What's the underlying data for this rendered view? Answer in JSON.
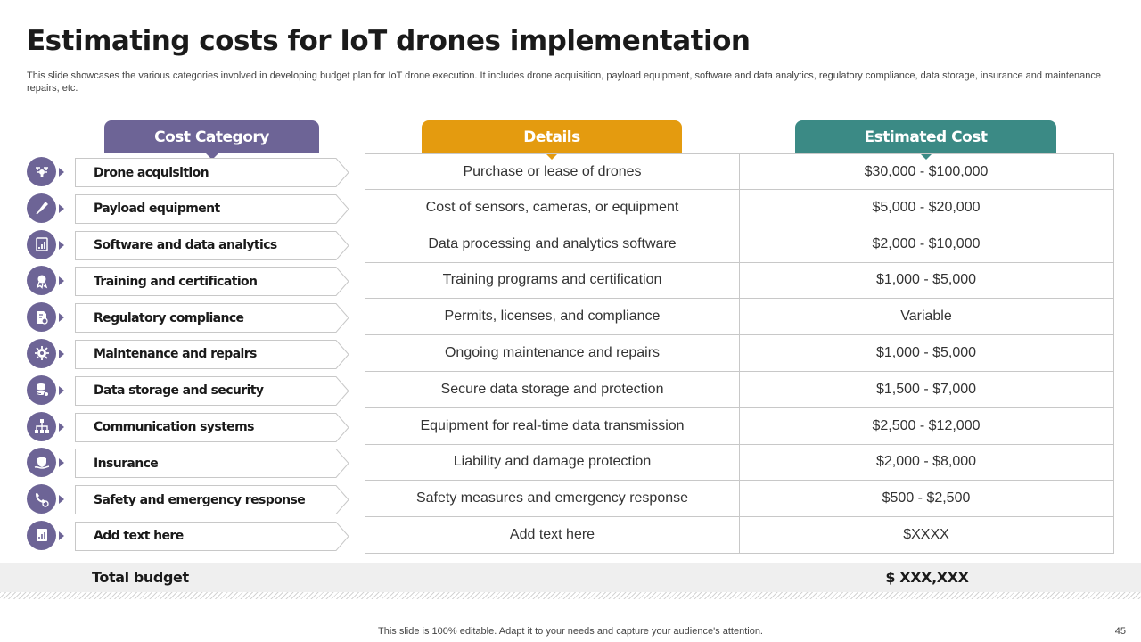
{
  "slide": {
    "title": "Estimating costs for IoT drones implementation",
    "subtitle": "This slide showcases the various categories involved in developing budget plan for IoT drone execution. It includes drone acquisition, payload equipment, software and data analytics, regulatory compliance, data storage, insurance and maintenance repairs, etc.",
    "footer": "This slide is 100% editable. Adapt it to your needs and capture your audience's attention.",
    "page_number": "45"
  },
  "colors": {
    "category_header": "#6d6496",
    "details_header": "#e49b0f",
    "cost_header": "#3b8a85"
  },
  "headers": {
    "category": "Cost Category",
    "details": "Details",
    "cost": "Estimated Cost"
  },
  "rows": [
    {
      "icon": "drone-icon",
      "category": "Drone acquisition",
      "details": "Purchase or lease of drones",
      "cost": "$30,000 - $100,000"
    },
    {
      "icon": "payload-icon",
      "category": "Payload equipment",
      "details": "Cost of sensors, cameras, or equipment",
      "cost": "$5,000 - $20,000"
    },
    {
      "icon": "analytics-icon",
      "category": "Software and data analytics",
      "details": "Data processing and analytics software",
      "cost": "$2,000 - $10,000"
    },
    {
      "icon": "certificate-icon",
      "category": "Training and certification",
      "details": "Training programs and certification",
      "cost": "$1,000 - $5,000"
    },
    {
      "icon": "compliance-icon",
      "category": "Regulatory compliance",
      "details": "Permits, licenses, and compliance",
      "cost": "Variable"
    },
    {
      "icon": "maintenance-icon",
      "category": "Maintenance and repairs",
      "details": "Ongoing maintenance and repairs",
      "cost": "$1,000 - $5,000"
    },
    {
      "icon": "database-icon",
      "category": "Data storage and security",
      "details": "Secure data storage and protection",
      "cost": "$1,500 - $7,000"
    },
    {
      "icon": "network-icon",
      "category": "Communication systems",
      "details": "Equipment for real-time data transmission",
      "cost": "$2,500 - $12,000"
    },
    {
      "icon": "insurance-icon",
      "category": "Insurance",
      "details": "Liability and damage protection",
      "cost": "$2,000 - $8,000"
    },
    {
      "icon": "emergency-icon",
      "category": "Safety and emergency response",
      "details": "Safety measures and emergency response",
      "cost": "$500 - $2,500"
    },
    {
      "icon": "report-icon",
      "category": "Add text here",
      "details": "Add text here",
      "cost": "$XXXX"
    }
  ],
  "total": {
    "label": "Total budget",
    "value": "$ XXX,XXX"
  }
}
